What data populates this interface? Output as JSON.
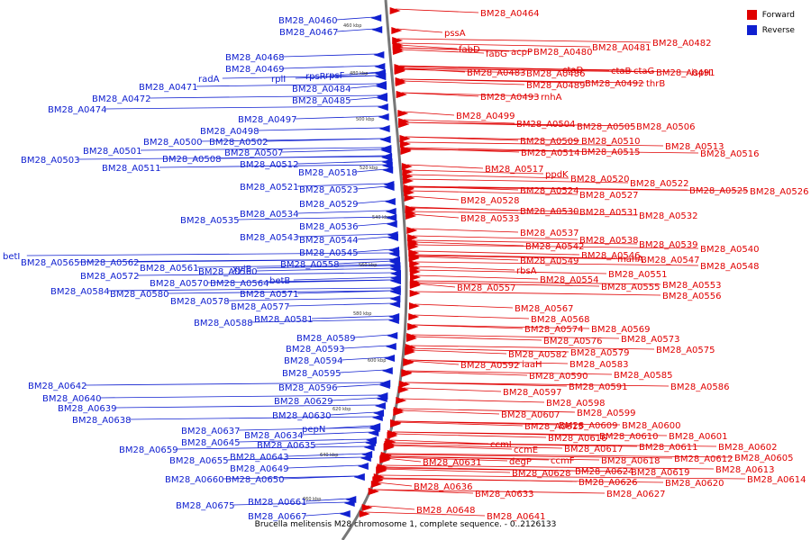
{
  "caption": "Brucella melitensis M28 chromosome 1, complete sequence. - 0..2126133",
  "legend": [
    {
      "label": "Forward",
      "color": "#e00000"
    },
    {
      "label": "Reverse",
      "color": "#1020d0"
    }
  ],
  "scale_ticks": [
    "460 kbp",
    "480 kbp",
    "500 kbp",
    "520 kbp",
    "540 kbp",
    "560 kbp",
    "580 kbp",
    "600 kbp",
    "620 kbp",
    "640 kbp",
    "660 kbp"
  ],
  "forward_labels": [
    "BM28_A0464",
    "pssA",
    "fabD",
    "fabG",
    "acpP",
    "BM28_A0480",
    "BM28_A0481",
    "BM28_A0482",
    "BM28_A0483",
    "BM28_A0486",
    "ctaD",
    "ctaB",
    "ctaG",
    "BM28_A0491",
    "ispH",
    "BM28_A0489",
    "BM28_A0492",
    "thrB",
    "BM28_A0493",
    "rnhA",
    "BM28_A0499",
    "BM28_A0504",
    "BM28_A0505",
    "BM28_A0506",
    "BM28_A0509",
    "BM28_A0510",
    "BM28_A0513",
    "BM28_A0514",
    "BM28_A0515",
    "BM28_A0516",
    "BM28_A0517",
    "ppdK",
    "BM28_A0520",
    "BM28_A0522",
    "BM28_A0524",
    "BM28_A0525",
    "BM28_A0526",
    "BM28_A0527",
    "BM28_A0528",
    "BM28_A0530",
    "BM28_A0531",
    "BM28_A0532",
    "BM28_A0533",
    "BM28_A0537",
    "BM28_A0538",
    "BM28_A0539",
    "BM28_A0542",
    "BM28_A0546",
    "BM28_A0540",
    "BM28_A0549",
    "manA",
    "BM28_A0547",
    "BM28_A0548",
    "rbsA",
    "BM28_A0551",
    "BM28_A0554",
    "BM28_A0553",
    "BM28_A0555",
    "BM28_A0556",
    "BM28_A0557",
    "BM28_A0567",
    "BM28_A0568",
    "BM28_A0574",
    "BM28_A0569",
    "BM28_A0576",
    "BM28_A0573",
    "BM28_A0575",
    "BM28_A0582",
    "BM28_A0579",
    "iaaH",
    "BM28_A0583",
    "BM28_A0592",
    "BM28_A0590",
    "BM28_A0585",
    "BM28_A0591",
    "BM28_A0586",
    "BM28_A0597",
    "BM28_A0598",
    "BM28_A0599",
    "BM28_A0607",
    "BM28_A0609",
    "BM28_A0600",
    "BM28_A0615",
    "BM28_A0610",
    "BM28_A0601",
    "BM28_A0616",
    "ccmI",
    "BM28_A0611",
    "BM28_A0602",
    "ccmE",
    "BM28_A0617",
    "BM28_A0612",
    "BM28_A0605",
    "degP",
    "ccmF",
    "BM28_A0618",
    "BM28_A0613",
    "BM28_A0624",
    "BM28_A0619",
    "BM28_A0614",
    "BM28_A0631",
    "BM28_A0628",
    "BM28_A0626",
    "BM28_A0620",
    "BM28_A0627",
    "BM28_A0636",
    "BM28_A0633",
    "BM28_A0648",
    "BM28_A0641"
  ],
  "reverse_labels": [
    "BM28_A0460",
    "BM28_A0467",
    "BM28_A0468",
    "BM28_A0469",
    "radA",
    "BM28_A0471",
    "rplI",
    "rpsR",
    "rpsF",
    "BM28_A0472",
    "BM28_A0474",
    "BM28_A0484",
    "BM28_A0485",
    "BM28_A0497",
    "BM28_A0498",
    "BM28_A0500",
    "BM28_A0502",
    "BM28_A0501",
    "BM28_A0507",
    "BM28_A0503",
    "BM28_A0508",
    "BM28_A0511",
    "BM28_A0512",
    "BM28_A0518",
    "BM28_A0521",
    "BM28_A0523",
    "BM28_A0529",
    "BM28_A0534",
    "BM28_A0535",
    "BM28_A0536",
    "BM28_A0543",
    "BM28_A0544",
    "BM28_A0545",
    "betI",
    "BM28_A0565",
    "BM28_A0562",
    "BM28_A0561",
    "BM28_A0558",
    "BM28_A0560",
    "xylB",
    "BM28_A0572",
    "BM28_A0570",
    "BM28_A0564",
    "betB",
    "BM28_A0584",
    "BM28_A0580",
    "BM28_A0571",
    "BM28_A0578",
    "BM28_A0577",
    "BM28_A0588",
    "BM28_A0581",
    "BM28_A0589",
    "BM28_A0593",
    "BM28_A0594",
    "BM28_A0595",
    "BM28_A0596",
    "BM28_A0642",
    "BM28_A0640",
    "BM28_A0639",
    "BM28_A0629",
    "BM28_A0638",
    "BM28_A0630",
    "BM28_A0637",
    "pepN",
    "BM28_A0634",
    "BM28_A0645",
    "BM28_A0635",
    "BM28_A0659",
    "BM28_A0655",
    "BM28_A0643",
    "BM28_A0649",
    "BM28_A0660",
    "BM28_A0650",
    "BM28_A0675",
    "BM28_A0661",
    "BM28_A0667"
  ]
}
